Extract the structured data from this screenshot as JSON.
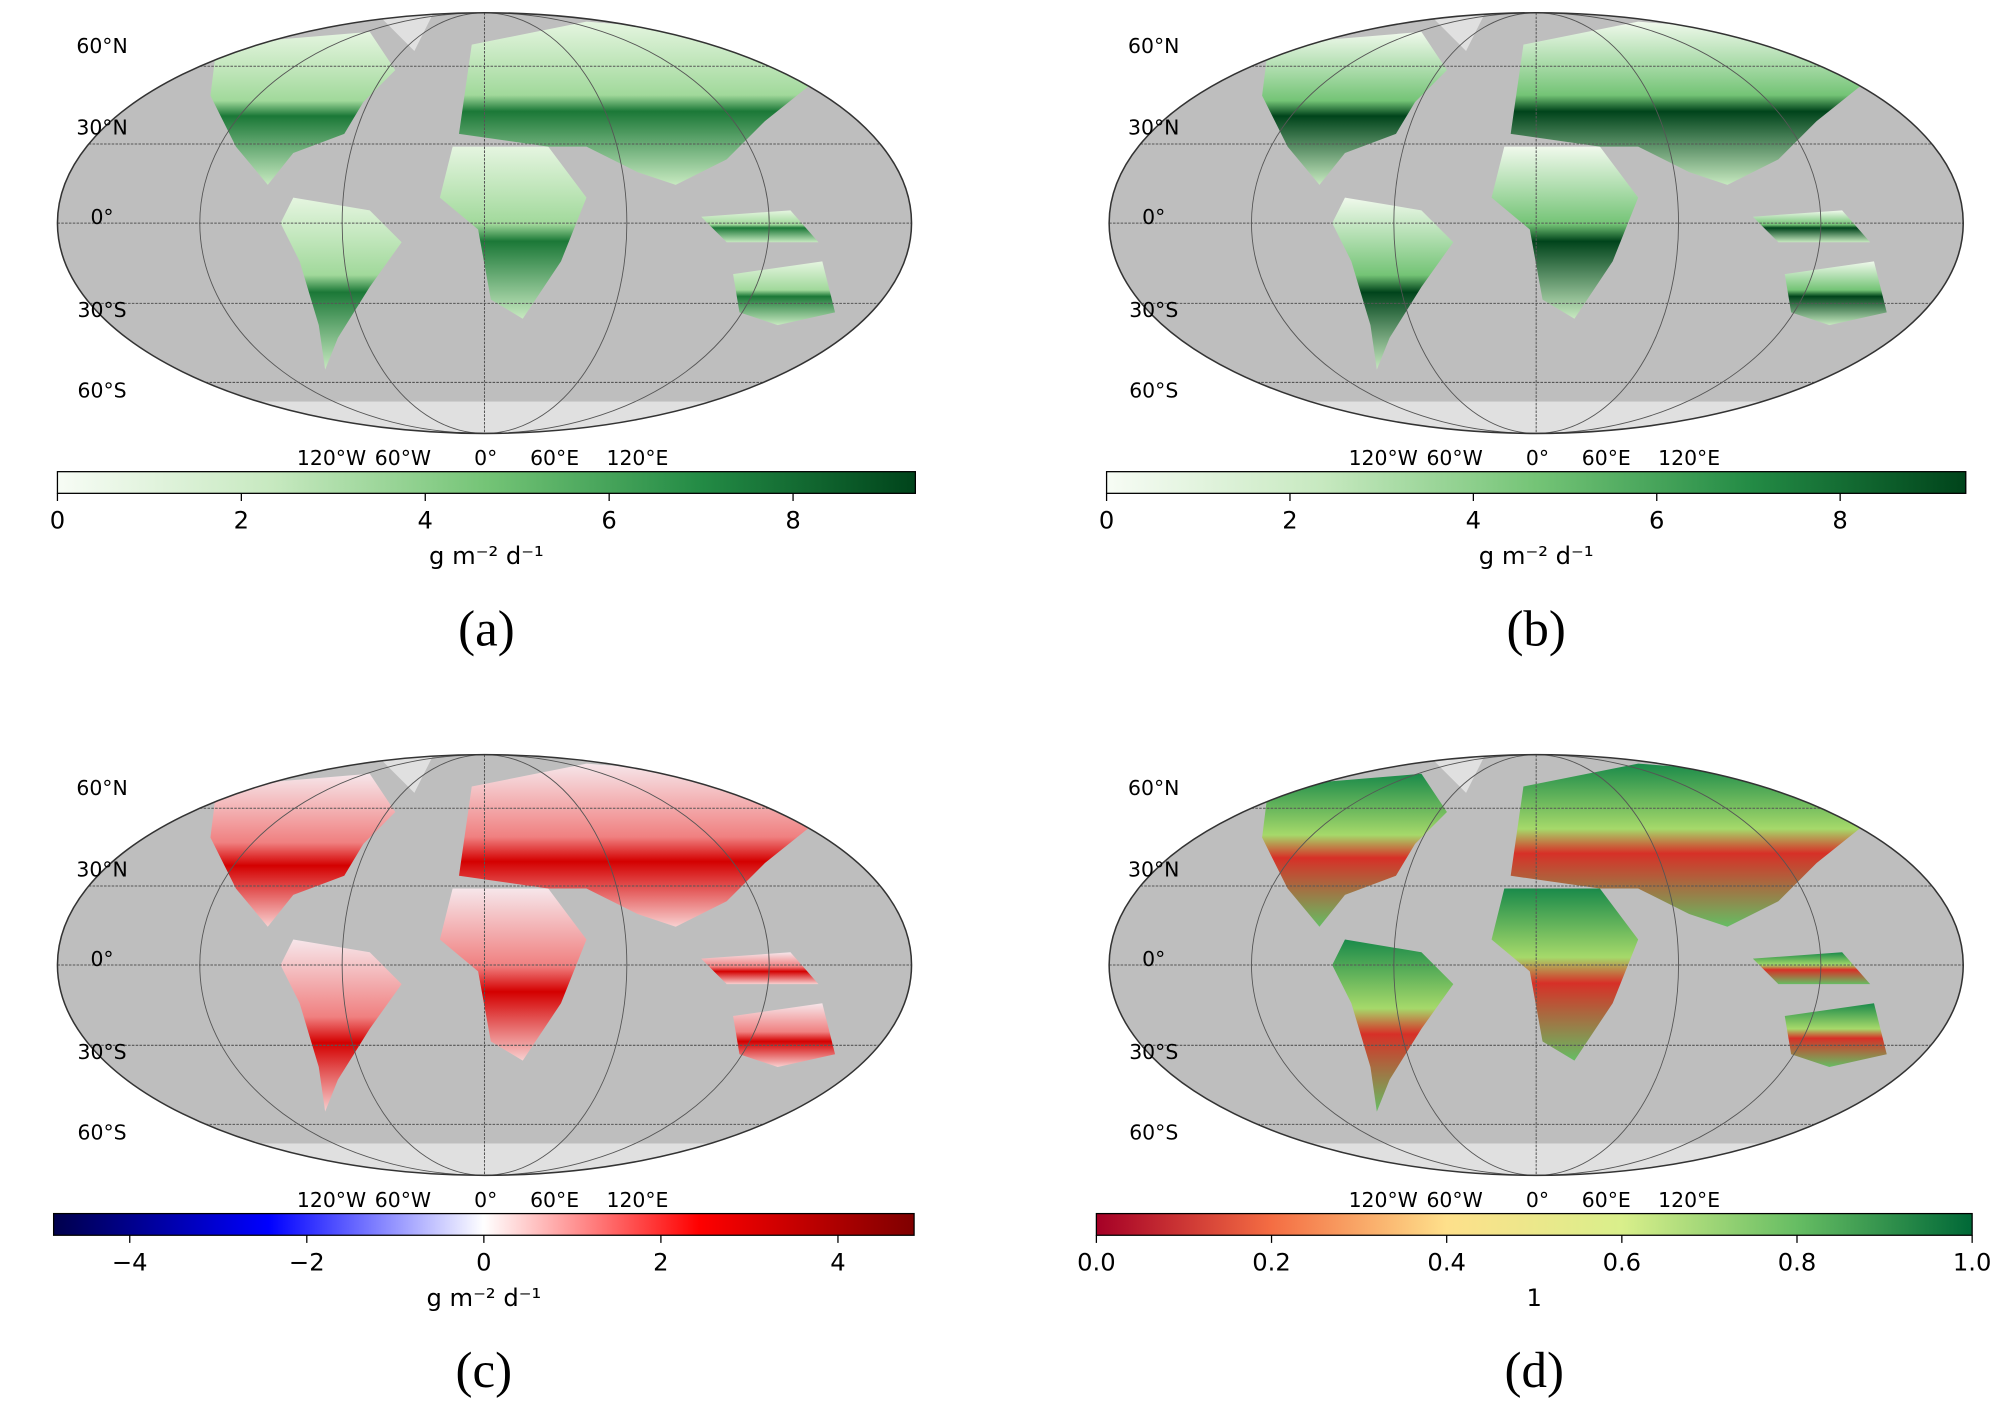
{
  "panels": [
    {
      "caption": "(a)",
      "lat_labels": [
        "60°N",
        "30°N",
        "0°",
        "30°S",
        "60°S"
      ],
      "lon_labels": [
        "120°W",
        "60°W",
        "0°",
        "60°E",
        "120°E"
      ],
      "colorbar": {
        "label": "g m⁻² d⁻¹",
        "lim": [
          0,
          9.33
        ],
        "ticks": [
          0,
          2,
          4,
          6,
          8
        ],
        "colors": [
          "#f7fcf5",
          "#c7e9c0",
          "#74c476",
          "#238b45",
          "#00441b"
        ]
      }
    },
    {
      "caption": "(b)",
      "lat_labels": [
        "60°N",
        "30°N",
        "0°",
        "30°S",
        "60°S"
      ],
      "lon_labels": [
        "120°W",
        "60°W",
        "0°",
        "60°E",
        "120°E"
      ],
      "colorbar": {
        "label": "g m⁻² d⁻¹",
        "lim": [
          0,
          9.37
        ],
        "ticks": [
          0,
          2,
          4,
          6,
          8
        ],
        "colors": [
          "#f7fcf5",
          "#c7e9c0",
          "#74c476",
          "#238b45",
          "#00441b"
        ]
      }
    },
    {
      "caption": "(c)",
      "lat_labels": [
        "60°N",
        "30°N",
        "0°",
        "30°S",
        "60°S"
      ],
      "lon_labels": [
        "120°W",
        "60°W",
        "0°",
        "60°E",
        "120°E"
      ],
      "colorbar": {
        "label": "g m⁻² d⁻¹",
        "lim": [
          -4.86,
          4.86
        ],
        "ticks": [
          {
            "value": -4,
            "label": "−4"
          },
          {
            "value": -2,
            "label": "−2"
          },
          0,
          2,
          4
        ],
        "colors": [
          "#00004c",
          "#0000ff",
          "#ffffff",
          "#ff0000",
          "#7f0000"
        ]
      }
    },
    {
      "caption": "(d)",
      "lat_labels": [
        "60°N",
        "30°N",
        "0°",
        "30°S",
        "60°S"
      ],
      "lon_labels": [
        "120°W",
        "60°W",
        "0°",
        "60°E",
        "120°E"
      ],
      "colorbar": {
        "label": "1",
        "lim": [
          0,
          1
        ],
        "ticks": [
          {
            "value": 0,
            "label": "0.0"
          },
          0.2,
          0.4,
          0.6,
          0.8,
          {
            "value": 1,
            "label": "1.0"
          }
        ],
        "colors": [
          "#a50026",
          "#f46d43",
          "#fee08b",
          "#d9ef8b",
          "#66bd63",
          "#006837"
        ]
      }
    }
  ]
}
